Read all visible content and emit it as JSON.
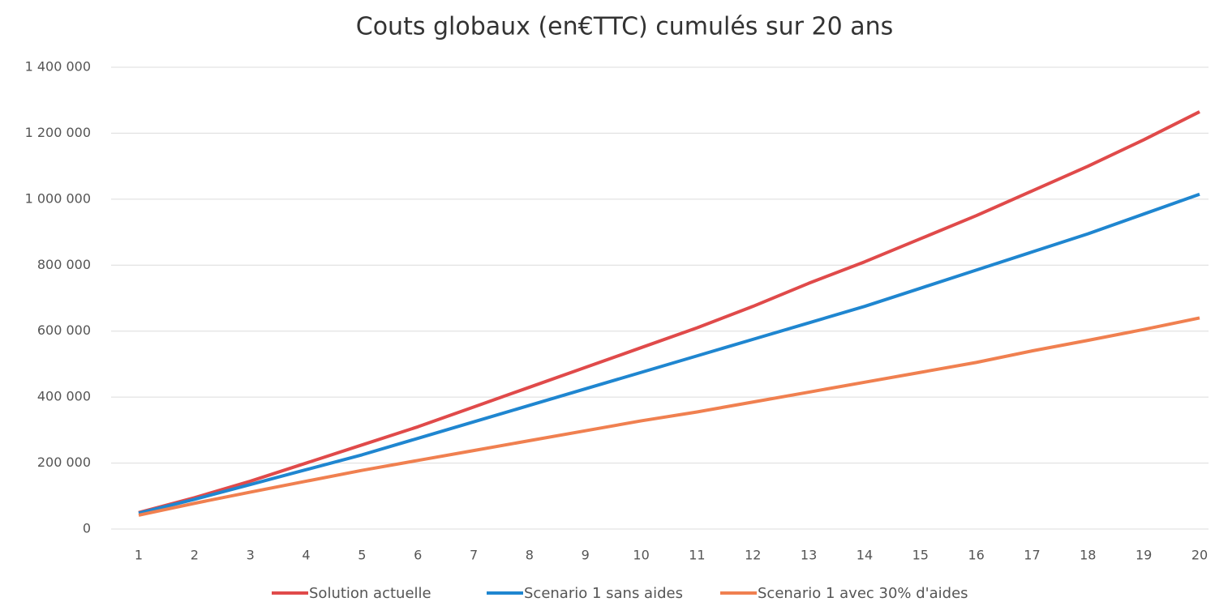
{
  "chart_data": {
    "type": "line",
    "title": "Couts globaux (en€TTC) cumulés sur 20 ans",
    "categories": [
      "1",
      "2",
      "3",
      "4",
      "5",
      "6",
      "7",
      "8",
      "9",
      "10",
      "11",
      "12",
      "13",
      "14",
      "15",
      "16",
      "17",
      "18",
      "19",
      "20"
    ],
    "series": [
      {
        "name": "Solution actuelle",
        "color": "#e04a4a",
        "values": [
          50000,
          95000,
          145000,
          200000,
          255000,
          310000,
          370000,
          430000,
          490000,
          550000,
          610000,
          675000,
          745000,
          810000,
          880000,
          950000,
          1025000,
          1100000,
          1180000,
          1265000
        ]
      },
      {
        "name": "Scenario 1 sans aides",
        "color": "#1f86d0",
        "values": [
          48000,
          90000,
          135000,
          180000,
          225000,
          275000,
          325000,
          375000,
          425000,
          475000,
          525000,
          575000,
          625000,
          675000,
          730000,
          785000,
          840000,
          895000,
          955000,
          1015000
        ]
      },
      {
        "name": "Scenario 1 avec 30% d'aides",
        "color": "#f08050",
        "values": [
          42000,
          78000,
          112000,
          145000,
          178000,
          208000,
          238000,
          268000,
          298000,
          328000,
          355000,
          385000,
          415000,
          445000,
          475000,
          505000,
          540000,
          572000,
          605000,
          640000
        ]
      }
    ],
    "ylim": [
      0,
      1400000
    ],
    "yticks": [
      0,
      {
        "value": 200000,
        "label": "200 000"
      },
      {
        "value": 400000,
        "label": "400 000"
      },
      {
        "value": 600000,
        "label": "600 000"
      },
      {
        "value": 800000,
        "label": "800 000"
      },
      {
        "value": 1000000,
        "label": "1 000 000"
      },
      {
        "value": 1200000,
        "label": "1 200 000"
      },
      {
        "value": 1400000,
        "label": "1 400 000"
      }
    ],
    "grid": true,
    "legend": "bottom"
  }
}
